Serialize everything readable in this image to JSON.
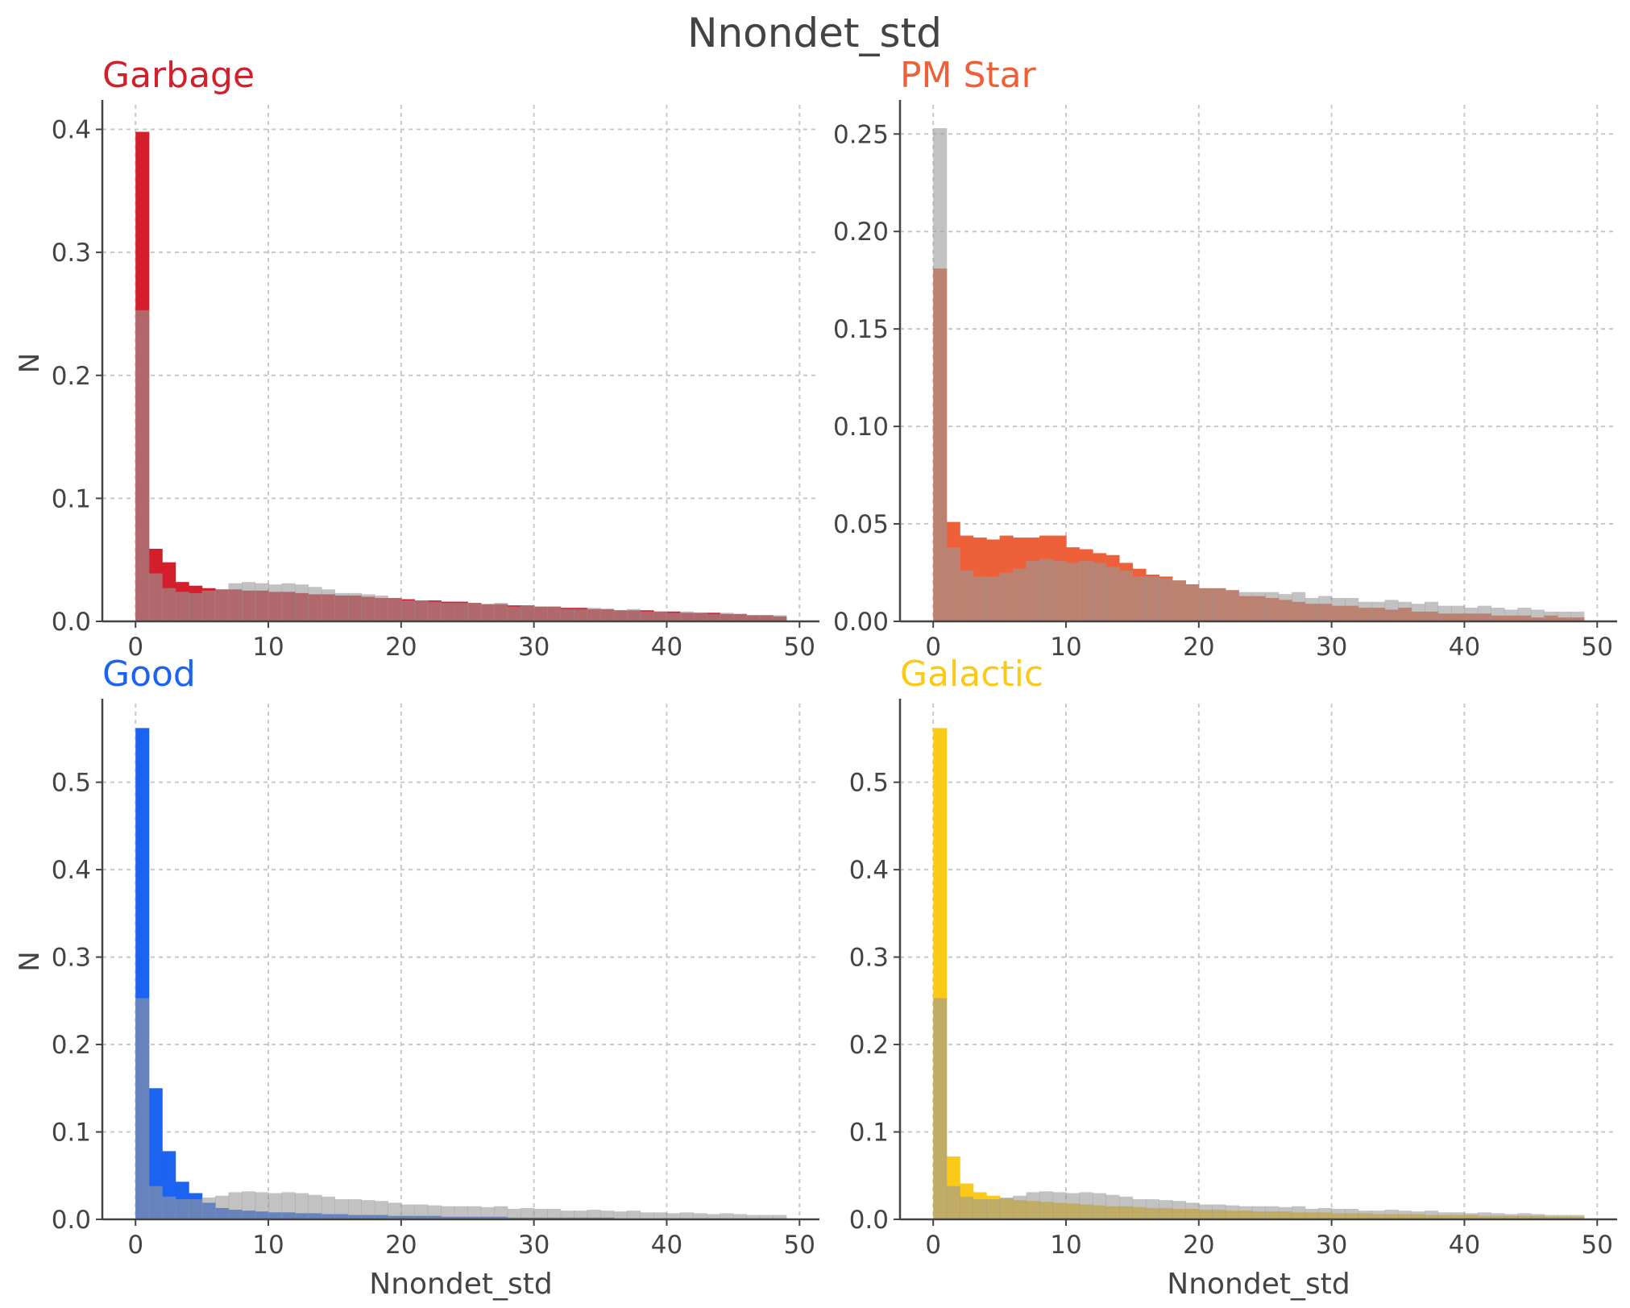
{
  "figure": {
    "title": "Nnondet_std",
    "background_color": "#ffffff",
    "text_color": "#444444",
    "grid_color": "#c8c8c8",
    "reference_color": "#9a9a9a"
  },
  "chart_data": [
    {
      "type": "bar",
      "title": "Garbage",
      "title_color": "#d21f2b",
      "series_color": "#d21f2b",
      "xlabel": "",
      "ylabel": "N",
      "xlim": [
        -2.5,
        51.5
      ],
      "ylim": [
        0,
        0.42
      ],
      "xticks": [
        "0",
        "10",
        "20",
        "30",
        "40",
        "50"
      ],
      "yticks": [
        "0.0",
        "0.1",
        "0.2",
        "0.3",
        "0.4"
      ],
      "grid": true,
      "bin_width": 1,
      "bin_start": 0,
      "series": [
        {
          "values": [
            0.398,
            0.059,
            0.048,
            0.032,
            0.029,
            0.027,
            0.026,
            0.026,
            0.025,
            0.025,
            0.024,
            0.024,
            0.023,
            0.022,
            0.022,
            0.021,
            0.021,
            0.02,
            0.019,
            0.019,
            0.018,
            0.017,
            0.017,
            0.016,
            0.016,
            0.015,
            0.014,
            0.014,
            0.013,
            0.013,
            0.012,
            0.012,
            0.011,
            0.011,
            0.01,
            0.01,
            0.009,
            0.009,
            0.009,
            0.008,
            0.008,
            0.007,
            0.007,
            0.007,
            0.006,
            0.006,
            0.005,
            0.005,
            0.004
          ]
        },
        {
          "values": [
            0.253,
            0.039,
            0.027,
            0.024,
            0.023,
            0.025,
            0.026,
            0.031,
            0.032,
            0.031,
            0.03,
            0.031,
            0.03,
            0.028,
            0.026,
            0.023,
            0.023,
            0.022,
            0.021,
            0.019,
            0.017,
            0.017,
            0.016,
            0.015,
            0.015,
            0.015,
            0.014,
            0.015,
            0.012,
            0.013,
            0.012,
            0.012,
            0.01,
            0.01,
            0.011,
            0.01,
            0.009,
            0.01,
            0.008,
            0.008,
            0.007,
            0.008,
            0.007,
            0.006,
            0.007,
            0.006,
            0.005,
            0.005,
            0.005
          ]
        }
      ]
    },
    {
      "type": "bar",
      "title": "PM Star",
      "title_color": "#ee6039",
      "series_color": "#ee6039",
      "xlabel": "",
      "ylabel": "",
      "xlim": [
        -2.5,
        51.5
      ],
      "ylim": [
        0,
        0.265
      ],
      "xticks": [
        "0",
        "10",
        "20",
        "30",
        "40",
        "50"
      ],
      "yticks": [
        "0.00",
        "0.05",
        "0.10",
        "0.15",
        "0.20",
        "0.25"
      ],
      "grid": true,
      "bin_width": 1,
      "bin_start": 0,
      "series": [
        {
          "values": [
            0.181,
            0.051,
            0.044,
            0.043,
            0.042,
            0.044,
            0.043,
            0.043,
            0.044,
            0.044,
            0.038,
            0.037,
            0.035,
            0.034,
            0.03,
            0.027,
            0.024,
            0.023,
            0.021,
            0.019,
            0.017,
            0.017,
            0.016,
            0.013,
            0.013,
            0.012,
            0.011,
            0.01,
            0.009,
            0.009,
            0.008,
            0.008,
            0.007,
            0.007,
            0.006,
            0.007,
            0.005,
            0.005,
            0.004,
            0.004,
            0.004,
            0.004,
            0.003,
            0.003,
            0.003,
            0.002,
            0.003,
            0.002,
            0.002
          ]
        },
        {
          "values": [
            0.253,
            0.038,
            0.026,
            0.023,
            0.023,
            0.025,
            0.027,
            0.031,
            0.032,
            0.031,
            0.03,
            0.031,
            0.03,
            0.028,
            0.026,
            0.023,
            0.023,
            0.022,
            0.021,
            0.019,
            0.017,
            0.017,
            0.016,
            0.015,
            0.015,
            0.015,
            0.014,
            0.015,
            0.012,
            0.013,
            0.012,
            0.012,
            0.01,
            0.01,
            0.011,
            0.01,
            0.009,
            0.01,
            0.008,
            0.008,
            0.007,
            0.008,
            0.007,
            0.006,
            0.007,
            0.006,
            0.005,
            0.005,
            0.005
          ]
        }
      ]
    },
    {
      "type": "bar",
      "title": "Good",
      "title_color": "#1c63f2",
      "series_color": "#1c63f2",
      "xlabel": "Nnondet_std",
      "ylabel": "N",
      "xlim": [
        -2.5,
        51.5
      ],
      "ylim": [
        0,
        0.59
      ],
      "xticks": [
        "0",
        "10",
        "20",
        "30",
        "40",
        "50"
      ],
      "yticks": [
        "0.0",
        "0.1",
        "0.2",
        "0.3",
        "0.4",
        "0.5"
      ],
      "grid": true,
      "bin_width": 1,
      "bin_start": 0,
      "series": [
        {
          "values": [
            0.562,
            0.15,
            0.078,
            0.043,
            0.03,
            0.019,
            0.013,
            0.011,
            0.01,
            0.009,
            0.008,
            0.008,
            0.007,
            0.007,
            0.006,
            0.006,
            0.005,
            0.005,
            0.005,
            0.004,
            0.004,
            0.004,
            0.004,
            0.003,
            0.003,
            0.003,
            0.003,
            0.003,
            0.002,
            0.002,
            0.002,
            0.002,
            0.002,
            0.002,
            0.002,
            0.002,
            0.001,
            0.001,
            0.001,
            0.001,
            0.001,
            0.001,
            0.001,
            0.001,
            0.001,
            0.001,
            0.001,
            0.001,
            0.001
          ]
        },
        {
          "values": [
            0.253,
            0.038,
            0.026,
            0.023,
            0.023,
            0.025,
            0.027,
            0.031,
            0.032,
            0.031,
            0.03,
            0.031,
            0.03,
            0.028,
            0.026,
            0.023,
            0.023,
            0.022,
            0.021,
            0.019,
            0.017,
            0.017,
            0.016,
            0.015,
            0.015,
            0.015,
            0.014,
            0.015,
            0.012,
            0.013,
            0.012,
            0.012,
            0.01,
            0.01,
            0.011,
            0.01,
            0.009,
            0.01,
            0.008,
            0.008,
            0.007,
            0.008,
            0.007,
            0.006,
            0.007,
            0.006,
            0.005,
            0.005,
            0.005
          ]
        }
      ]
    },
    {
      "type": "bar",
      "title": "Galactic",
      "title_color": "#fbc918",
      "series_color": "#fbc918",
      "xlabel": "Nnondet_std",
      "ylabel": "",
      "xlim": [
        -2.5,
        51.5
      ],
      "ylim": [
        0,
        0.59
      ],
      "xticks": [
        "0",
        "10",
        "20",
        "30",
        "40",
        "50"
      ],
      "yticks": [
        "0.0",
        "0.1",
        "0.2",
        "0.3",
        "0.4",
        "0.5"
      ],
      "grid": true,
      "bin_width": 1,
      "bin_start": 0,
      "series": [
        {
          "values": [
            0.562,
            0.072,
            0.041,
            0.031,
            0.027,
            0.024,
            0.022,
            0.021,
            0.02,
            0.019,
            0.018,
            0.017,
            0.016,
            0.015,
            0.015,
            0.014,
            0.013,
            0.013,
            0.012,
            0.012,
            0.011,
            0.011,
            0.01,
            0.01,
            0.009,
            0.009,
            0.009,
            0.008,
            0.008,
            0.008,
            0.007,
            0.007,
            0.007,
            0.006,
            0.006,
            0.006,
            0.006,
            0.005,
            0.005,
            0.005,
            0.005,
            0.004,
            0.004,
            0.004,
            0.004,
            0.004,
            0.003,
            0.003,
            0.003
          ]
        },
        {
          "values": [
            0.253,
            0.038,
            0.026,
            0.023,
            0.023,
            0.025,
            0.027,
            0.031,
            0.032,
            0.031,
            0.03,
            0.031,
            0.03,
            0.028,
            0.026,
            0.023,
            0.023,
            0.022,
            0.021,
            0.019,
            0.017,
            0.017,
            0.016,
            0.015,
            0.015,
            0.015,
            0.014,
            0.015,
            0.012,
            0.013,
            0.012,
            0.012,
            0.01,
            0.01,
            0.011,
            0.01,
            0.009,
            0.01,
            0.008,
            0.008,
            0.007,
            0.008,
            0.007,
            0.006,
            0.007,
            0.006,
            0.005,
            0.005,
            0.005
          ]
        }
      ]
    }
  ]
}
